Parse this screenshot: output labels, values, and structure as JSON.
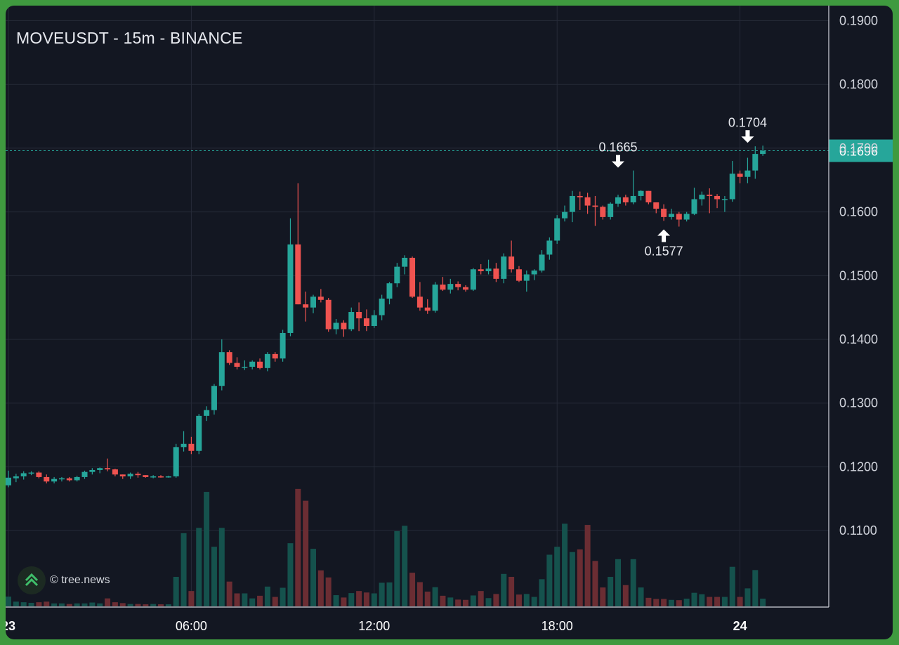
{
  "header": {
    "title": "MOVEUSDT - 15m - BINANCE"
  },
  "watermark": {
    "text": "© tree.news",
    "logo_icon": "tree-news-logo-icon"
  },
  "colors": {
    "background": "#131722",
    "frame": "#3f9a3f",
    "up": "#26a69a",
    "down": "#ef5350",
    "up_volume": "#15524d",
    "down_volume": "#6b2d33",
    "grid": "#262b38",
    "price_line": "#26a69a"
  },
  "chart_data": {
    "type": "candlestick",
    "symbol": "MOVEUSDT",
    "interval": "15m",
    "exchange": "BINANCE",
    "y_ticks": [
      "0.1900",
      "0.1800",
      "0.1700",
      "0.1600",
      "0.1500",
      "0.1400",
      "0.1300",
      "0.1200",
      "0.1100"
    ],
    "x_ticks": [
      {
        "label": "23",
        "index": 0,
        "bold": true
      },
      {
        "label": "06:00",
        "index": 24,
        "bold": false
      },
      {
        "label": "12:00",
        "index": 48,
        "bold": false
      },
      {
        "label": "18:00",
        "index": 72,
        "bold": false
      },
      {
        "label": "24",
        "index": 96,
        "bold": true
      }
    ],
    "ylim": [
      0.1045,
      0.1905
    ],
    "grid": true,
    "last_price": {
      "label": "0.1696",
      "value": 0.1696
    },
    "annotations": [
      {
        "label": "0.1665",
        "index": 80,
        "value": 0.1665,
        "direction": "down"
      },
      {
        "label": "0.1577",
        "index": 86,
        "value": 0.1577,
        "direction": "up"
      },
      {
        "label": "0.1704",
        "index": 97,
        "value": 0.1704,
        "direction": "down"
      }
    ],
    "candles": [
      [
        0.1171,
        0.1194,
        0.1168,
        0.1183,
        0.33
      ],
      [
        0.1182,
        0.1189,
        0.1176,
        0.1185,
        0.16
      ],
      [
        0.1185,
        0.1193,
        0.118,
        0.119,
        0.14
      ],
      [
        0.119,
        0.1193,
        0.1187,
        0.1191,
        0.12
      ],
      [
        0.1191,
        0.1193,
        0.1182,
        0.1184,
        0.14
      ],
      [
        0.1184,
        0.1188,
        0.1174,
        0.1177,
        0.16
      ],
      [
        0.1177,
        0.1184,
        0.1174,
        0.1181,
        0.1
      ],
      [
        0.1181,
        0.1184,
        0.1177,
        0.1182,
        0.1
      ],
      [
        0.1182,
        0.1184,
        0.1177,
        0.1179,
        0.08
      ],
      [
        0.1179,
        0.1186,
        0.1177,
        0.1184,
        0.1
      ],
      [
        0.1184,
        0.1194,
        0.1181,
        0.1192,
        0.1
      ],
      [
        0.1192,
        0.1198,
        0.1188,
        0.1195,
        0.13
      ],
      [
        0.1195,
        0.1199,
        0.119,
        0.1198,
        0.1
      ],
      [
        0.1198,
        0.1213,
        0.1193,
        0.1196,
        0.27
      ],
      [
        0.1196,
        0.1197,
        0.1185,
        0.1188,
        0.14
      ],
      [
        0.1188,
        0.1188,
        0.1181,
        0.1185,
        0.11
      ],
      [
        0.1185,
        0.1191,
        0.1181,
        0.1189,
        0.08
      ],
      [
        0.1189,
        0.1192,
        0.1183,
        0.1187,
        0.08
      ],
      [
        0.1187,
        0.1187,
        0.1183,
        0.1184,
        0.07
      ],
      [
        0.1184,
        0.1187,
        0.1182,
        0.1185,
        0.08
      ],
      [
        0.1185,
        0.1187,
        0.1183,
        0.1184,
        0.07
      ],
      [
        0.1184,
        0.1186,
        0.1183,
        0.1185,
        0.07
      ],
      [
        0.1185,
        0.1236,
        0.1183,
        0.1231,
        1.0
      ],
      [
        0.1231,
        0.1256,
        0.1224,
        0.1236,
        2.48
      ],
      [
        0.1236,
        0.1247,
        0.122,
        0.1225,
        0.52
      ],
      [
        0.1225,
        0.1283,
        0.122,
        0.128,
        2.66
      ],
      [
        0.128,
        0.1295,
        0.1272,
        0.1289,
        3.88
      ],
      [
        0.1289,
        0.133,
        0.1282,
        0.1327,
        2.02
      ],
      [
        0.1327,
        0.14,
        0.132,
        0.138,
        2.66
      ],
      [
        0.138,
        0.1383,
        0.136,
        0.1363,
        0.84
      ],
      [
        0.1363,
        0.1372,
        0.1353,
        0.1357,
        0.44
      ],
      [
        0.1357,
        0.1367,
        0.1352,
        0.1357,
        0.44
      ],
      [
        0.1357,
        0.1367,
        0.1353,
        0.1365,
        0.27
      ],
      [
        0.1365,
        0.137,
        0.1353,
        0.1355,
        0.36
      ],
      [
        0.1355,
        0.138,
        0.135,
        0.1377,
        0.67
      ],
      [
        0.1377,
        0.138,
        0.1365,
        0.137,
        0.32
      ],
      [
        0.137,
        0.1415,
        0.1365,
        0.141,
        0.63
      ],
      [
        0.141,
        0.159,
        0.1405,
        0.1549,
        2.14
      ],
      [
        0.1549,
        0.1645,
        0.1455,
        0.1455,
        3.98
      ],
      [
        0.1455,
        0.1475,
        0.1428,
        0.145,
        3.58
      ],
      [
        0.145,
        0.147,
        0.1441,
        0.1467,
        1.95
      ],
      [
        0.1467,
        0.1479,
        0.1458,
        0.1462,
        1.22
      ],
      [
        0.1462,
        0.1465,
        0.1412,
        0.1416,
        0.98
      ],
      [
        0.1416,
        0.1432,
        0.1408,
        0.1426,
        0.38
      ],
      [
        0.1426,
        0.143,
        0.1404,
        0.1416,
        0.3
      ],
      [
        0.1416,
        0.145,
        0.1413,
        0.1443,
        0.45
      ],
      [
        0.1443,
        0.1458,
        0.1413,
        0.1433,
        0.52
      ],
      [
        0.1433,
        0.1447,
        0.1413,
        0.1421,
        0.47
      ],
      [
        0.1421,
        0.1446,
        0.1418,
        0.1438,
        0.44
      ],
      [
        0.1438,
        0.147,
        0.143,
        0.1464,
        0.8
      ],
      [
        0.1464,
        0.149,
        0.1455,
        0.1488,
        0.81
      ],
      [
        0.1488,
        0.152,
        0.1482,
        0.1514,
        2.55
      ],
      [
        0.1514,
        0.1532,
        0.1502,
        0.1528,
        2.73
      ],
      [
        0.1528,
        0.153,
        0.1465,
        0.1467,
        1.14
      ],
      [
        0.1467,
        0.149,
        0.1445,
        0.145,
        0.82
      ],
      [
        0.145,
        0.1463,
        0.144,
        0.1445,
        0.5
      ],
      [
        0.1445,
        0.149,
        0.1442,
        0.1486,
        0.65
      ],
      [
        0.1486,
        0.1498,
        0.1476,
        0.1478,
        0.36
      ],
      [
        0.1478,
        0.1495,
        0.1472,
        0.1487,
        0.3
      ],
      [
        0.1487,
        0.1491,
        0.1477,
        0.1482,
        0.23
      ],
      [
        0.1482,
        0.1485,
        0.1475,
        0.1478,
        0.22
      ],
      [
        0.1478,
        0.1512,
        0.1476,
        0.151,
        0.37
      ],
      [
        0.151,
        0.1518,
        0.1502,
        0.1507,
        0.52
      ],
      [
        0.1507,
        0.1525,
        0.1502,
        0.1511,
        0.28
      ],
      [
        0.1511,
        0.152,
        0.149,
        0.1495,
        0.42
      ],
      [
        0.1495,
        0.1535,
        0.1488,
        0.153,
        1.1
      ],
      [
        0.153,
        0.1555,
        0.1505,
        0.151,
        1.0
      ],
      [
        0.151,
        0.1515,
        0.149,
        0.1492,
        0.4
      ],
      [
        0.1492,
        0.1508,
        0.1475,
        0.1502,
        0.42
      ],
      [
        0.1502,
        0.151,
        0.1493,
        0.1508,
        0.32
      ],
      [
        0.1508,
        0.154,
        0.1505,
        0.1533,
        0.92
      ],
      [
        0.1533,
        0.156,
        0.1525,
        0.1555,
        1.75
      ],
      [
        0.1555,
        0.1595,
        0.155,
        0.159,
        2.02
      ],
      [
        0.159,
        0.161,
        0.1585,
        0.16,
        2.8
      ],
      [
        0.16,
        0.1633,
        0.1584,
        0.1625,
        1.84
      ],
      [
        0.1625,
        0.1632,
        0.1603,
        0.1623,
        1.93
      ],
      [
        0.1623,
        0.163,
        0.1597,
        0.161,
        2.76
      ],
      [
        0.161,
        0.1625,
        0.1578,
        0.1608,
        1.54
      ],
      [
        0.1608,
        0.161,
        0.1588,
        0.1592,
        0.64
      ],
      [
        0.1592,
        0.1615,
        0.1588,
        0.1613,
        1.0
      ],
      [
        0.1613,
        0.1627,
        0.1608,
        0.1623,
        1.6
      ],
      [
        0.1623,
        0.1627,
        0.161,
        0.1615,
        0.72
      ],
      [
        0.1615,
        0.1665,
        0.1612,
        0.1625,
        1.6
      ],
      [
        0.1625,
        0.1634,
        0.1618,
        0.1633,
        0.64
      ],
      [
        0.1633,
        0.1633,
        0.1612,
        0.1615,
        0.29
      ],
      [
        0.1615,
        0.1615,
        0.1598,
        0.1605,
        0.25
      ],
      [
        0.1605,
        0.1612,
        0.1586,
        0.1592,
        0.25
      ],
      [
        0.1592,
        0.1605,
        0.1588,
        0.1597,
        0.22
      ],
      [
        0.1597,
        0.16,
        0.1577,
        0.1588,
        0.21
      ],
      [
        0.1588,
        0.16,
        0.1585,
        0.1597,
        0.26
      ],
      [
        0.1597,
        0.1638,
        0.1595,
        0.162,
        0.46
      ],
      [
        0.162,
        0.1632,
        0.161,
        0.1627,
        0.41
      ],
      [
        0.1627,
        0.1637,
        0.1598,
        0.1625,
        0.32
      ],
      [
        0.1625,
        0.1628,
        0.1606,
        0.162,
        0.32
      ],
      [
        0.162,
        0.1625,
        0.16,
        0.162,
        0.32
      ],
      [
        0.162,
        0.168,
        0.1616,
        0.166,
        1.34
      ],
      [
        0.166,
        0.1665,
        0.1645,
        0.1655,
        0.32
      ],
      [
        0.1655,
        0.1685,
        0.1645,
        0.1665,
        0.61
      ],
      [
        0.1665,
        0.1703,
        0.1652,
        0.1691,
        1.23
      ],
      [
        0.1691,
        0.1704,
        0.1688,
        0.1696,
        0.26
      ]
    ]
  }
}
